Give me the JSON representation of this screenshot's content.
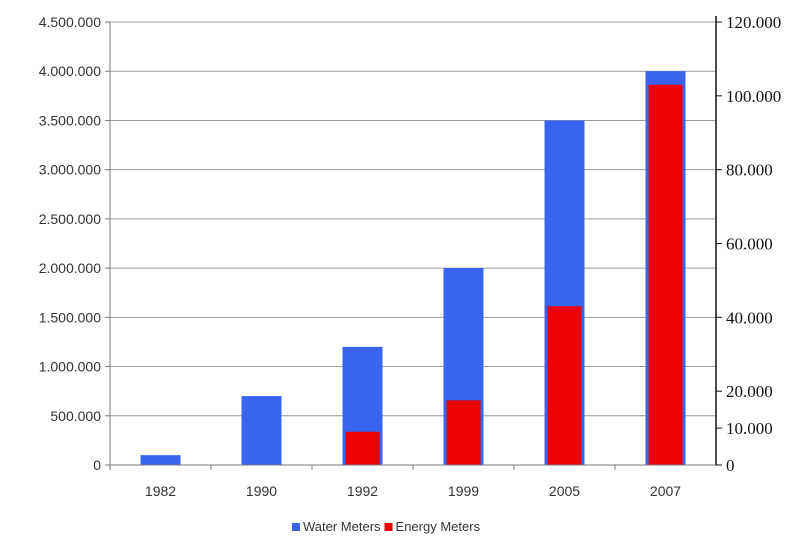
{
  "chart_data": {
    "type": "bar",
    "categories": [
      "1982",
      "1990",
      "1992",
      "1999",
      "2005",
      "2007"
    ],
    "series": [
      {
        "name": "Water Meters",
        "axis": "left",
        "color": "#3a63f0",
        "values": [
          100000,
          700000,
          1200000,
          2000000,
          3500000,
          4000000
        ]
      },
      {
        "name": "Energy Meters",
        "axis": "right",
        "color": "#ee0000",
        "values": [
          0,
          0,
          9000,
          17500,
          43000,
          103000
        ]
      }
    ],
    "y_left": {
      "ylim": [
        0,
        4500000
      ],
      "ticks": [
        0,
        500000,
        1000000,
        1500000,
        2000000,
        2500000,
        3000000,
        3500000,
        4000000,
        4500000
      ],
      "tick_labels": [
        "0",
        "500.000",
        "1.000.000",
        "1.500.000",
        "2.000.000",
        "2.500.000",
        "3.000.000",
        "3.500.000",
        "4.000.000",
        "4.500.000"
      ]
    },
    "y_right": {
      "ylim": [
        0,
        120000
      ],
      "ticks": [
        0,
        10000,
        20000,
        40000,
        60000,
        80000,
        100000,
        120000
      ],
      "tick_labels": [
        "0",
        "10.000",
        "20.000",
        "40.000",
        "60.000",
        "80.000",
        "100.000",
        "120.000"
      ]
    },
    "grid": true,
    "legend": {
      "position": "bottom",
      "items": [
        "Water Meters",
        "Energy Meters"
      ]
    }
  }
}
